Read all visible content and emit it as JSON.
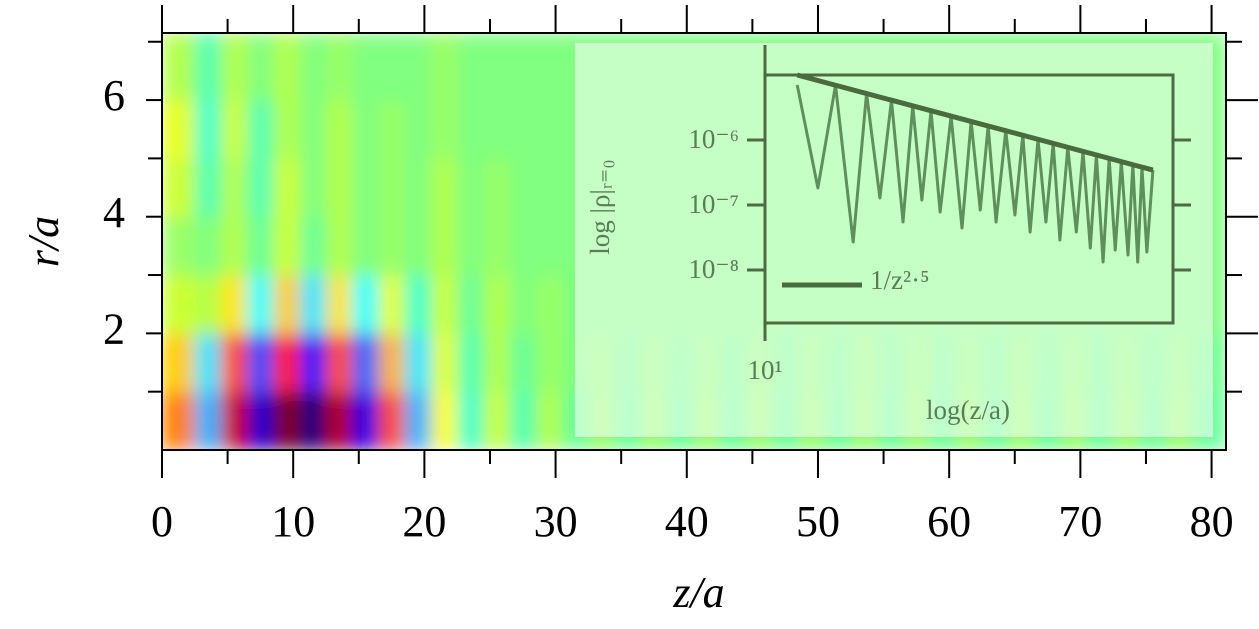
{
  "chart_data": [
    {
      "type": "heatmap",
      "xlabel": "z/a",
      "ylabel": "r/a",
      "colormap": "jet",
      "zlim": [
        -1,
        1
      ],
      "x": [
        1.5,
        3.5,
        5.5,
        7.5,
        9.5,
        11.5,
        13.5,
        15.5,
        17.5,
        19.5,
        21.5,
        23.5,
        25.5,
        27.5,
        29.5,
        31.5,
        33.5,
        35.5,
        37.5,
        39.5,
        41.5,
        43.5,
        45.5,
        47.5,
        49.5,
        51.5,
        53.5,
        55.5,
        57.5,
        59.5,
        61.5,
        63.5,
        65.5,
        67.5,
        69.5,
        71.5,
        73.5,
        75.5,
        77.5,
        79.5
      ],
      "y": [
        0.5,
        1.5,
        2.5,
        3.5,
        4.5,
        5.5,
        6.5
      ],
      "z": [
        [
          0.5,
          -0.4,
          0.85,
          -0.85,
          1.0,
          -1.0,
          0.9,
          -0.8,
          0.6,
          -0.4,
          0.25,
          -0.15,
          0.15,
          -0.1,
          0.1,
          -0.05,
          0.05,
          -0.05,
          0.05,
          -0.05,
          0.05,
          -0.05,
          0.05,
          -0.05,
          0.05,
          -0.05,
          0.05,
          -0.05,
          0.05,
          -0.05,
          0.05,
          -0.05,
          0.05,
          -0.05,
          0.05,
          -0.05,
          0.05,
          -0.05,
          0.05,
          -0.05
        ],
        [
          0.35,
          -0.3,
          0.6,
          -0.6,
          0.7,
          -0.7,
          0.6,
          -0.55,
          0.4,
          -0.3,
          0.2,
          -0.1,
          0.1,
          -0.05,
          0.05,
          0,
          0.03,
          -0.03,
          0.03,
          -0.03,
          0.03,
          -0.03,
          0.03,
          -0.03,
          0.03,
          -0.03,
          0.03,
          -0.03,
          0.03,
          -0.03,
          0.03,
          -0.03,
          0.03,
          -0.03,
          0.03,
          -0.03,
          0.03,
          -0.03,
          0.03,
          -0.03
        ],
        [
          0.15,
          0.1,
          0.3,
          -0.25,
          0.35,
          -0.3,
          0.3,
          -0.25,
          0.2,
          -0.15,
          0.15,
          -0.05,
          0.1,
          0,
          0.05,
          0,
          0,
          0,
          0,
          0,
          0,
          0,
          0,
          0,
          0,
          0,
          0,
          0,
          0,
          0,
          0,
          0,
          0,
          0,
          0,
          0,
          0,
          0,
          0,
          0
        ],
        [
          0.05,
          0,
          0.1,
          -0.05,
          0.15,
          -0.05,
          0.1,
          0,
          0.05,
          0,
          0.1,
          0,
          0.05,
          0,
          0,
          0,
          0,
          0,
          0,
          0,
          0,
          0,
          0,
          0,
          0,
          0,
          0,
          0,
          0,
          0,
          0,
          0,
          0,
          0,
          0,
          0,
          0,
          0,
          0,
          0
        ],
        [
          0.15,
          -0.1,
          0.1,
          -0.1,
          0.15,
          0,
          0.1,
          0,
          0.05,
          0,
          0.1,
          0,
          0.05,
          0,
          0,
          0,
          0,
          0,
          0,
          0,
          0,
          0,
          0,
          0,
          0,
          0,
          0,
          0,
          0,
          0,
          0,
          0,
          0,
          0,
          0,
          0,
          0,
          0,
          0,
          0
        ],
        [
          0.2,
          -0.15,
          0.15,
          -0.1,
          0.1,
          0,
          0.1,
          0,
          0.05,
          0,
          0.05,
          0,
          0,
          0,
          0,
          0,
          0,
          0,
          0,
          0,
          0,
          0,
          0,
          0,
          0,
          0,
          0,
          0,
          0,
          0,
          0,
          0,
          0,
          0,
          0,
          0,
          0,
          0,
          0,
          0
        ],
        [
          0.1,
          -0.1,
          0.1,
          0,
          0.1,
          0,
          0.05,
          0,
          0,
          0,
          0.05,
          0,
          0,
          0,
          0,
          0,
          0,
          0,
          0,
          0,
          0,
          0,
          0,
          0,
          0,
          0,
          0,
          0,
          0,
          0,
          0,
          0,
          0,
          0,
          0,
          0,
          0,
          0,
          0,
          0
        ]
      ],
      "xlim": [
        0,
        81.1
      ],
      "ylim": [
        0,
        7.15
      ],
      "xticks": [
        0,
        10,
        20,
        30,
        40,
        50,
        60,
        70,
        80
      ],
      "xminorticks": [
        5,
        15,
        25,
        35,
        45,
        55,
        65,
        75
      ],
      "yticks": [
        2,
        4,
        6
      ],
      "yminorticks": [
        1,
        3,
        5,
        7
      ]
    },
    {
      "type": "line",
      "xlabel": "log(z/a)",
      "ylabel": "log |ρ|ᵣ₌₀",
      "legend": "lower left",
      "xlim": [
        1,
        1.671
      ],
      "ylim": [
        -8.815,
        -5
      ],
      "xticks": [
        {
          "value": 1,
          "label": "10¹"
        }
      ],
      "yticks": [
        {
          "value": -6,
          "label": "10⁻⁶"
        },
        {
          "value": -7,
          "label": "10⁻⁷"
        },
        {
          "value": -8,
          "label": "10⁻⁸"
        }
      ],
      "series": [
        {
          "color": "#5f8f5a",
          "x": [
            1.053,
            1.087,
            1.116,
            1.145,
            1.167,
            1.189,
            1.208,
            1.227,
            1.243,
            1.258,
            1.273,
            1.288,
            1.306,
            1.324,
            1.339,
            1.354,
            1.367,
            1.38,
            1.396,
            1.411,
            1.424,
            1.436,
            1.449,
            1.462,
            1.474,
            1.485,
            1.498,
            1.512,
            1.523,
            1.535,
            1.545,
            1.556,
            1.566,
            1.576,
            1.586,
            1.597,
            1.605,
            1.613,
            1.62,
            1.628,
            1.638
          ],
          "values": [
            -5.154,
            -6.738,
            -5.158,
            -7.569,
            -5.285,
            -6.892,
            -5.388,
            -7.262,
            -5.474,
            -6.923,
            -5.551,
            -7.108,
            -5.632,
            -7.354,
            -5.714,
            -7.077,
            -5.785,
            -7.262,
            -5.855,
            -7.154,
            -5.926,
            -7.415,
            -5.989,
            -7.262,
            -6.051,
            -7.538,
            -6.112,
            -7.415,
            -6.174,
            -7.662,
            -6.229,
            -7.877,
            -6.282,
            -7.692,
            -6.332,
            -7.769,
            -6.38,
            -7.877,
            -6.418,
            -7.723,
            -6.462
          ]
        },
        {
          "name": "1/z²·⁵",
          "color": "#4a6b3e",
          "x": [
            1.053,
            1.638
          ],
          "values": [
            -5,
            -6.462
          ]
        }
      ]
    }
  ]
}
